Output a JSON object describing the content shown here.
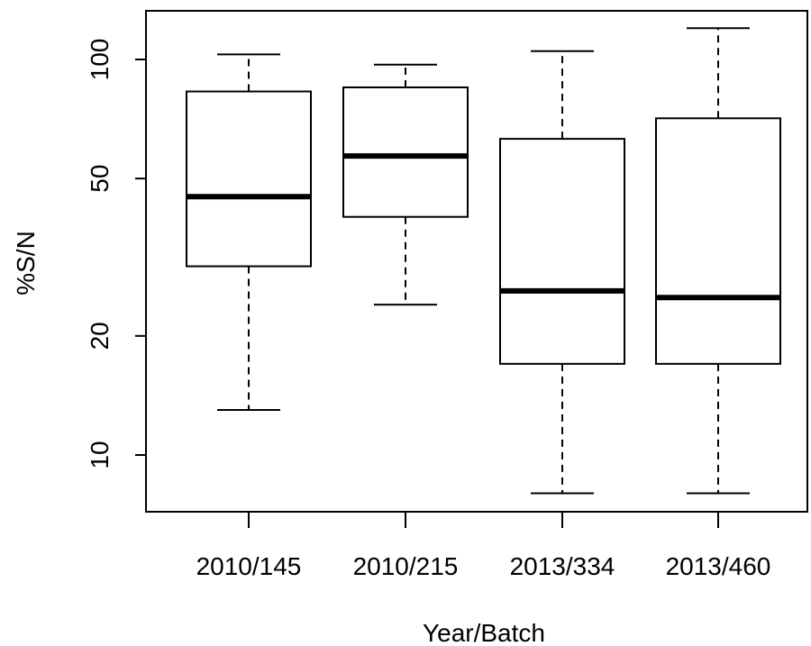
{
  "chart_data": {
    "type": "box",
    "xlabel": "Year/Batch",
    "ylabel": "%S/N",
    "y_scale": "log",
    "ylim": [
      7.2,
      125
    ],
    "y_ticks": [
      10,
      20,
      50,
      100
    ],
    "y_tick_labels": [
      "10",
      "20",
      "50",
      "100"
    ],
    "categories": [
      "2010/145",
      "2010/215",
      "2013/334",
      "2013/460"
    ],
    "boxes": [
      {
        "category": "2010/145",
        "whisker_low": 13,
        "q1": 30,
        "median": 45,
        "q3": 83,
        "whisker_high": 103
      },
      {
        "category": "2010/215",
        "whisker_low": 24,
        "q1": 40,
        "median": 57,
        "q3": 85,
        "whisker_high": 97
      },
      {
        "category": "2013/334",
        "whisker_low": 8,
        "q1": 17,
        "median": 26,
        "q3": 63,
        "whisker_high": 105
      },
      {
        "category": "2013/460",
        "whisker_low": 8,
        "q1": 17,
        "median": 25,
        "q3": 71,
        "whisker_high": 120
      }
    ]
  }
}
